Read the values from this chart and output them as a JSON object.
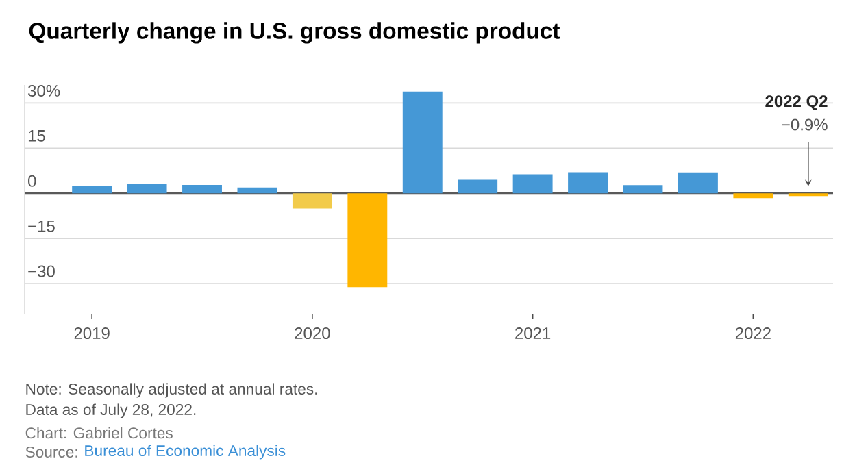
{
  "chart_data": {
    "type": "bar",
    "title": "Quarterly change in U.S. gross domestic product",
    "categories": [
      "2019",
      null,
      null,
      null,
      "2020",
      null,
      null,
      null,
      "2021",
      null,
      null,
      null,
      "2022",
      null
    ],
    "values": [
      2.4,
      3.2,
      2.8,
      1.9,
      -5.1,
      -31.2,
      33.8,
      4.5,
      6.3,
      7.0,
      2.7,
      6.9,
      -1.6,
      -0.9
    ],
    "colors": [
      "#4598d6",
      "#4598d6",
      "#4598d6",
      "#4598d6",
      "#f2cb4a",
      "#ffb600",
      "#4598d6",
      "#4598d6",
      "#4598d6",
      "#4598d6",
      "#4598d6",
      "#4598d6",
      "#ffb600",
      "#ffb600"
    ],
    "ylim": [
      -40,
      36
    ],
    "yticks": [
      {
        "value": 30,
        "label": "30%"
      },
      15,
      0,
      {
        "value": -15,
        "label": "−15"
      },
      {
        "value": -30,
        "label": "−30"
      }
    ],
    "grid": "y",
    "annotations": [
      "2022 Q2",
      "−0.9%",
      "Note: Seasonally adjusted at annual rates.",
      "Data as of July 28, 2022.",
      "Chart: Gabriel Cortes",
      "Source:",
      "Bureau of Economic Analysis"
    ]
  }
}
